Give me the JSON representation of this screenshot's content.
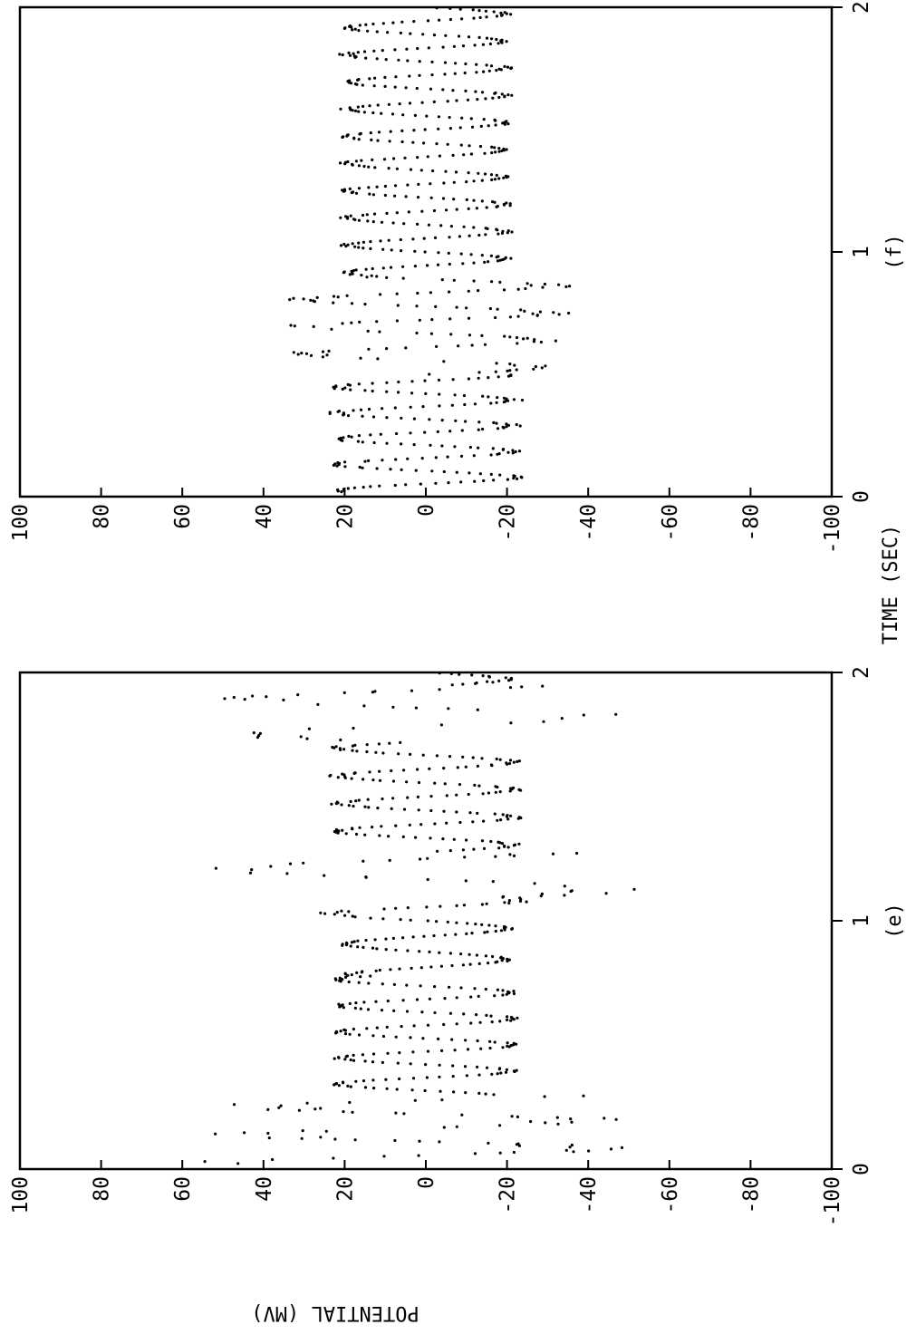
{
  "figure": {
    "ylabel": "POTENTIAL (MV)",
    "xlabel": "TIME (SEC)"
  },
  "colors": {
    "ink": "#000000",
    "background": "#ffffff"
  },
  "chart_data": [
    {
      "type": "scatter",
      "panel_label": "(e)",
      "xlabel": "",
      "ylabel": "",
      "xlim": [
        0,
        2
      ],
      "ylim": [
        -100,
        100
      ],
      "x_ticks": [
        0,
        1,
        2
      ],
      "y_ticks": [
        100,
        80,
        60,
        40,
        20,
        0,
        -20,
        -40,
        -60,
        -80,
        -100
      ],
      "grid": false,
      "series": [
        {
          "segments": [
            {
              "t": [
                0.02,
                0.3
              ],
              "f": 9.0,
              "amp": 40,
              "off": 0,
              "noise": 18,
              "density": 0.55
            },
            {
              "t": [
                0.3,
                0.78
              ],
              "f": 9.5,
              "amp": 22,
              "off": 0,
              "noise": 1.5,
              "density": 1.0
            },
            {
              "t": [
                0.78,
                1.0
              ],
              "f": 8.0,
              "amp": 20,
              "off": 0,
              "noise": 1.5,
              "density": 1.0
            },
            {
              "t": [
                1.0,
                1.1
              ],
              "f": 9.0,
              "amp": 24,
              "off": 0,
              "noise": 4,
              "density": 0.9
            },
            {
              "t": [
                1.1,
                1.28
              ],
              "f": 6.0,
              "amp": 45,
              "off": 0,
              "noise": 12,
              "density": 0.45
            },
            {
              "t": [
                1.28,
                1.72
              ],
              "f": 9.0,
              "amp": 22,
              "off": 0,
              "noise": 2,
              "density": 1.0
            },
            {
              "t": [
                1.72,
                1.95
              ],
              "f": 7.0,
              "amp": 45,
              "off": 0,
              "noise": 12,
              "density": 0.45
            },
            {
              "t": [
                1.95,
                2.0
              ],
              "f": 9.0,
              "amp": 20,
              "off": 0,
              "noise": 3,
              "density": 0.9
            }
          ]
        }
      ]
    },
    {
      "type": "scatter",
      "panel_label": "(f)",
      "xlabel": "",
      "ylabel": "",
      "xlim": [
        0,
        2
      ],
      "ylim": [
        -100,
        100
      ],
      "x_ticks": [
        0,
        1,
        2
      ],
      "y_ticks": [
        100,
        80,
        60,
        40,
        20,
        0,
        -20,
        -40,
        -60,
        -80,
        -100
      ],
      "grid": false,
      "series": [
        {
          "segments": [
            {
              "t": [
                0.02,
                0.5
              ],
              "f": 9.5,
              "amp": 22,
              "off": 0,
              "noise": 2,
              "density": 1.0
            },
            {
              "t": [
                0.5,
                0.9
              ],
              "f": 9.0,
              "amp": 30,
              "off": 0,
              "noise": 5,
              "density": 0.8
            },
            {
              "t": [
                0.9,
                2.0
              ],
              "f": 9.0,
              "amp": 20,
              "off": 0,
              "noise": 1.5,
              "density": 1.0
            }
          ]
        }
      ]
    }
  ]
}
